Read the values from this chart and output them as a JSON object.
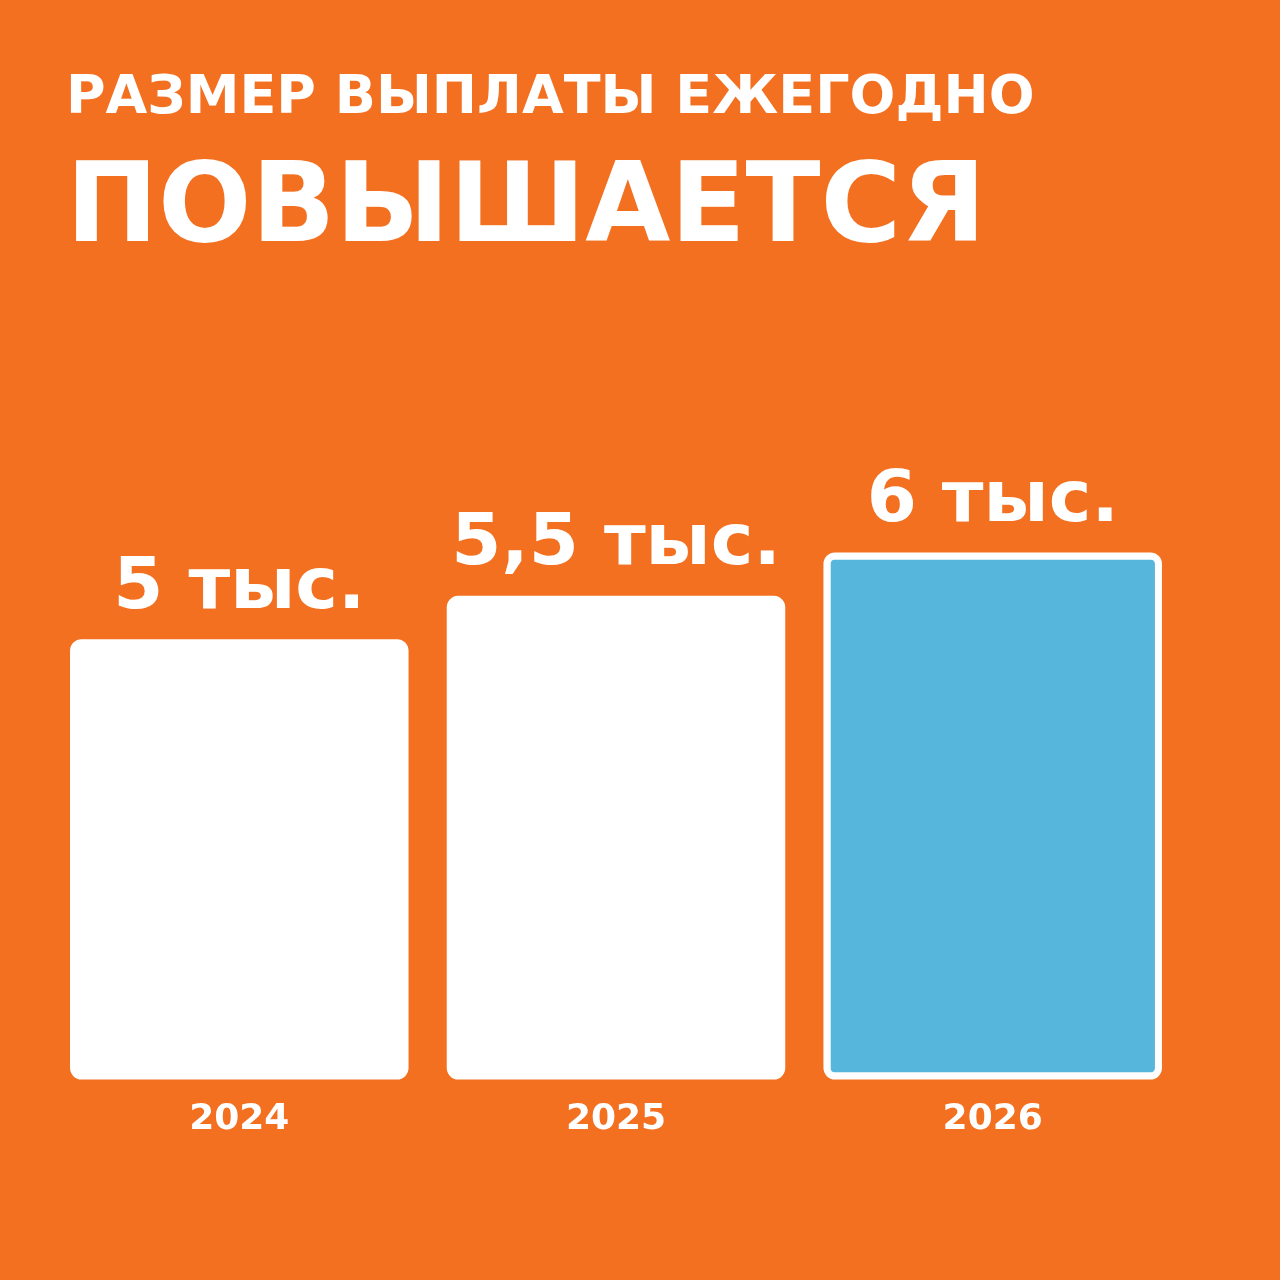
{
  "chart_data": {
    "type": "bar",
    "title": "РАЗМЕР ВЫПЛАТЫ ЕЖЕГОДНО",
    "subtitle": "ПОВЫШАЕТСЯ",
    "categories": [
      "2024",
      "2025",
      "2026"
    ],
    "values": [
      5,
      5.5,
      6
    ],
    "colors": [
      "#ffffff",
      "#ffffff",
      "#56b6dc"
    ],
    "value_labels": [
      "5 тыс.",
      "5,5 тыс.",
      "6 тыс."
    ],
    "tick_labels": "x"
  }
}
